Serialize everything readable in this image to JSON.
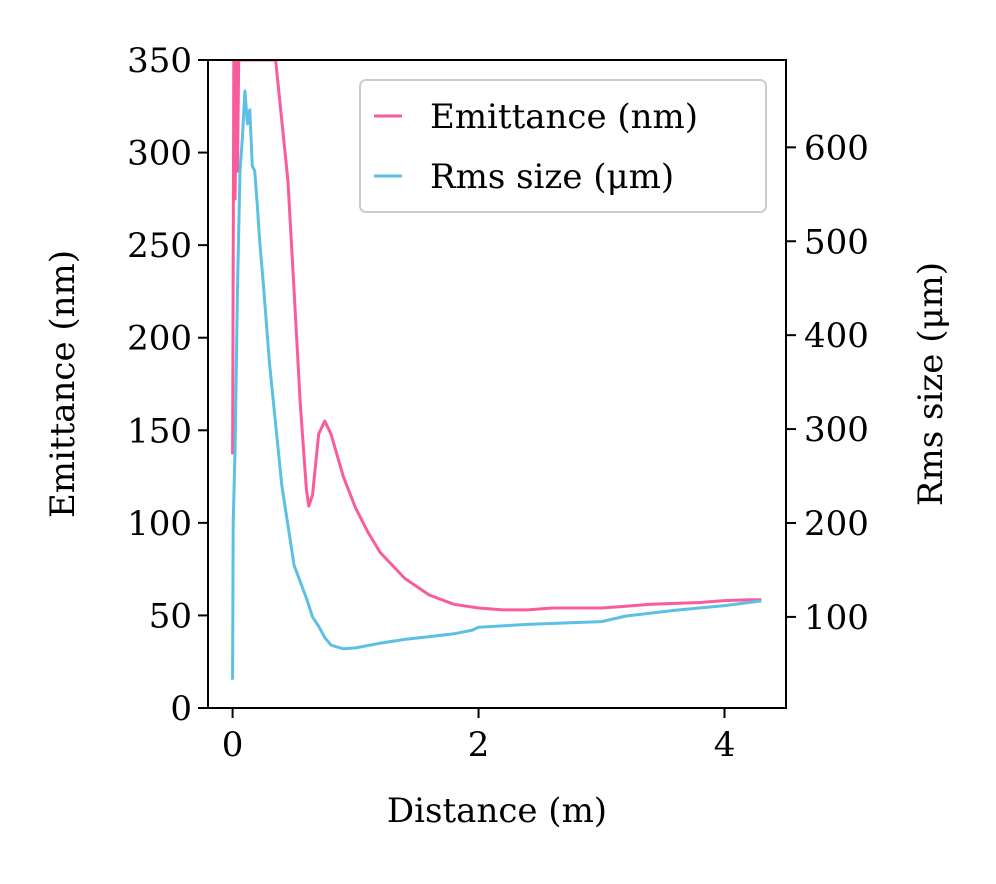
{
  "chart_data": {
    "type": "line",
    "xlabel": "Distance (m)",
    "ylabel": "Emittance (nm)",
    "y2label": "Rms size (μm)",
    "xlim": [
      -0.2,
      4.5
    ],
    "ylim": [
      0,
      350
    ],
    "y2lim": [
      3,
      693
    ],
    "xticks": [
      "0",
      "2",
      "4"
    ],
    "yticks": [
      "0",
      "50",
      "100",
      "150",
      "200",
      "250",
      "300",
      "350"
    ],
    "y2ticks": [
      "100",
      "200",
      "300",
      "400",
      "500",
      "600"
    ],
    "grid": false,
    "legend_position": "top-right",
    "series": [
      {
        "name": "Emittance (nm)",
        "axis": "left",
        "color": "#f95c9c",
        "x": [
          0.0,
          0.01,
          0.02,
          0.03,
          0.04,
          0.05,
          0.06,
          0.08,
          0.1,
          0.2,
          0.3,
          0.35,
          0.45,
          0.5,
          0.55,
          0.6,
          0.62,
          0.65,
          0.7,
          0.75,
          0.8,
          0.9,
          1.0,
          1.1,
          1.2,
          1.4,
          1.6,
          1.8,
          2.0,
          2.2,
          2.4,
          2.6,
          2.8,
          3.0,
          3.2,
          3.4,
          3.6,
          3.8,
          4.0,
          4.2,
          4.3
        ],
        "y": [
          137,
          350,
          275,
          350,
          290,
          350,
          350,
          350,
          350,
          350,
          350,
          350,
          285,
          225,
          165,
          118,
          109,
          115,
          148,
          155,
          148,
          125,
          108,
          95,
          84,
          70,
          61,
          56,
          54,
          53,
          53,
          54,
          54,
          54,
          55,
          56,
          56.5,
          57,
          58,
          58.5,
          58.5
        ]
      },
      {
        "name": "Rms size (μm)",
        "axis": "right",
        "color": "#5bc0e3",
        "x": [
          0.0,
          0.005,
          0.02,
          0.04,
          0.06,
          0.08,
          0.1,
          0.12,
          0.14,
          0.16,
          0.18,
          0.2,
          0.22,
          0.25,
          0.3,
          0.4,
          0.5,
          0.6,
          0.65,
          0.7,
          0.75,
          0.8,
          0.85,
          0.9,
          1.0,
          1.2,
          1.4,
          1.6,
          1.8,
          1.95,
          2.0,
          2.4,
          2.8,
          3.0,
          3.2,
          3.6,
          4.0,
          4.3
        ],
        "y": [
          33,
          200,
          280,
          450,
          575,
          610,
          660,
          625,
          640,
          580,
          575,
          540,
          500,
          455,
          370,
          240,
          155,
          120,
          100,
          90,
          78,
          70,
          68,
          66,
          67,
          72,
          76,
          79,
          82,
          86,
          89,
          92,
          94,
          95,
          101,
          107,
          112,
          117
        ]
      }
    ]
  }
}
